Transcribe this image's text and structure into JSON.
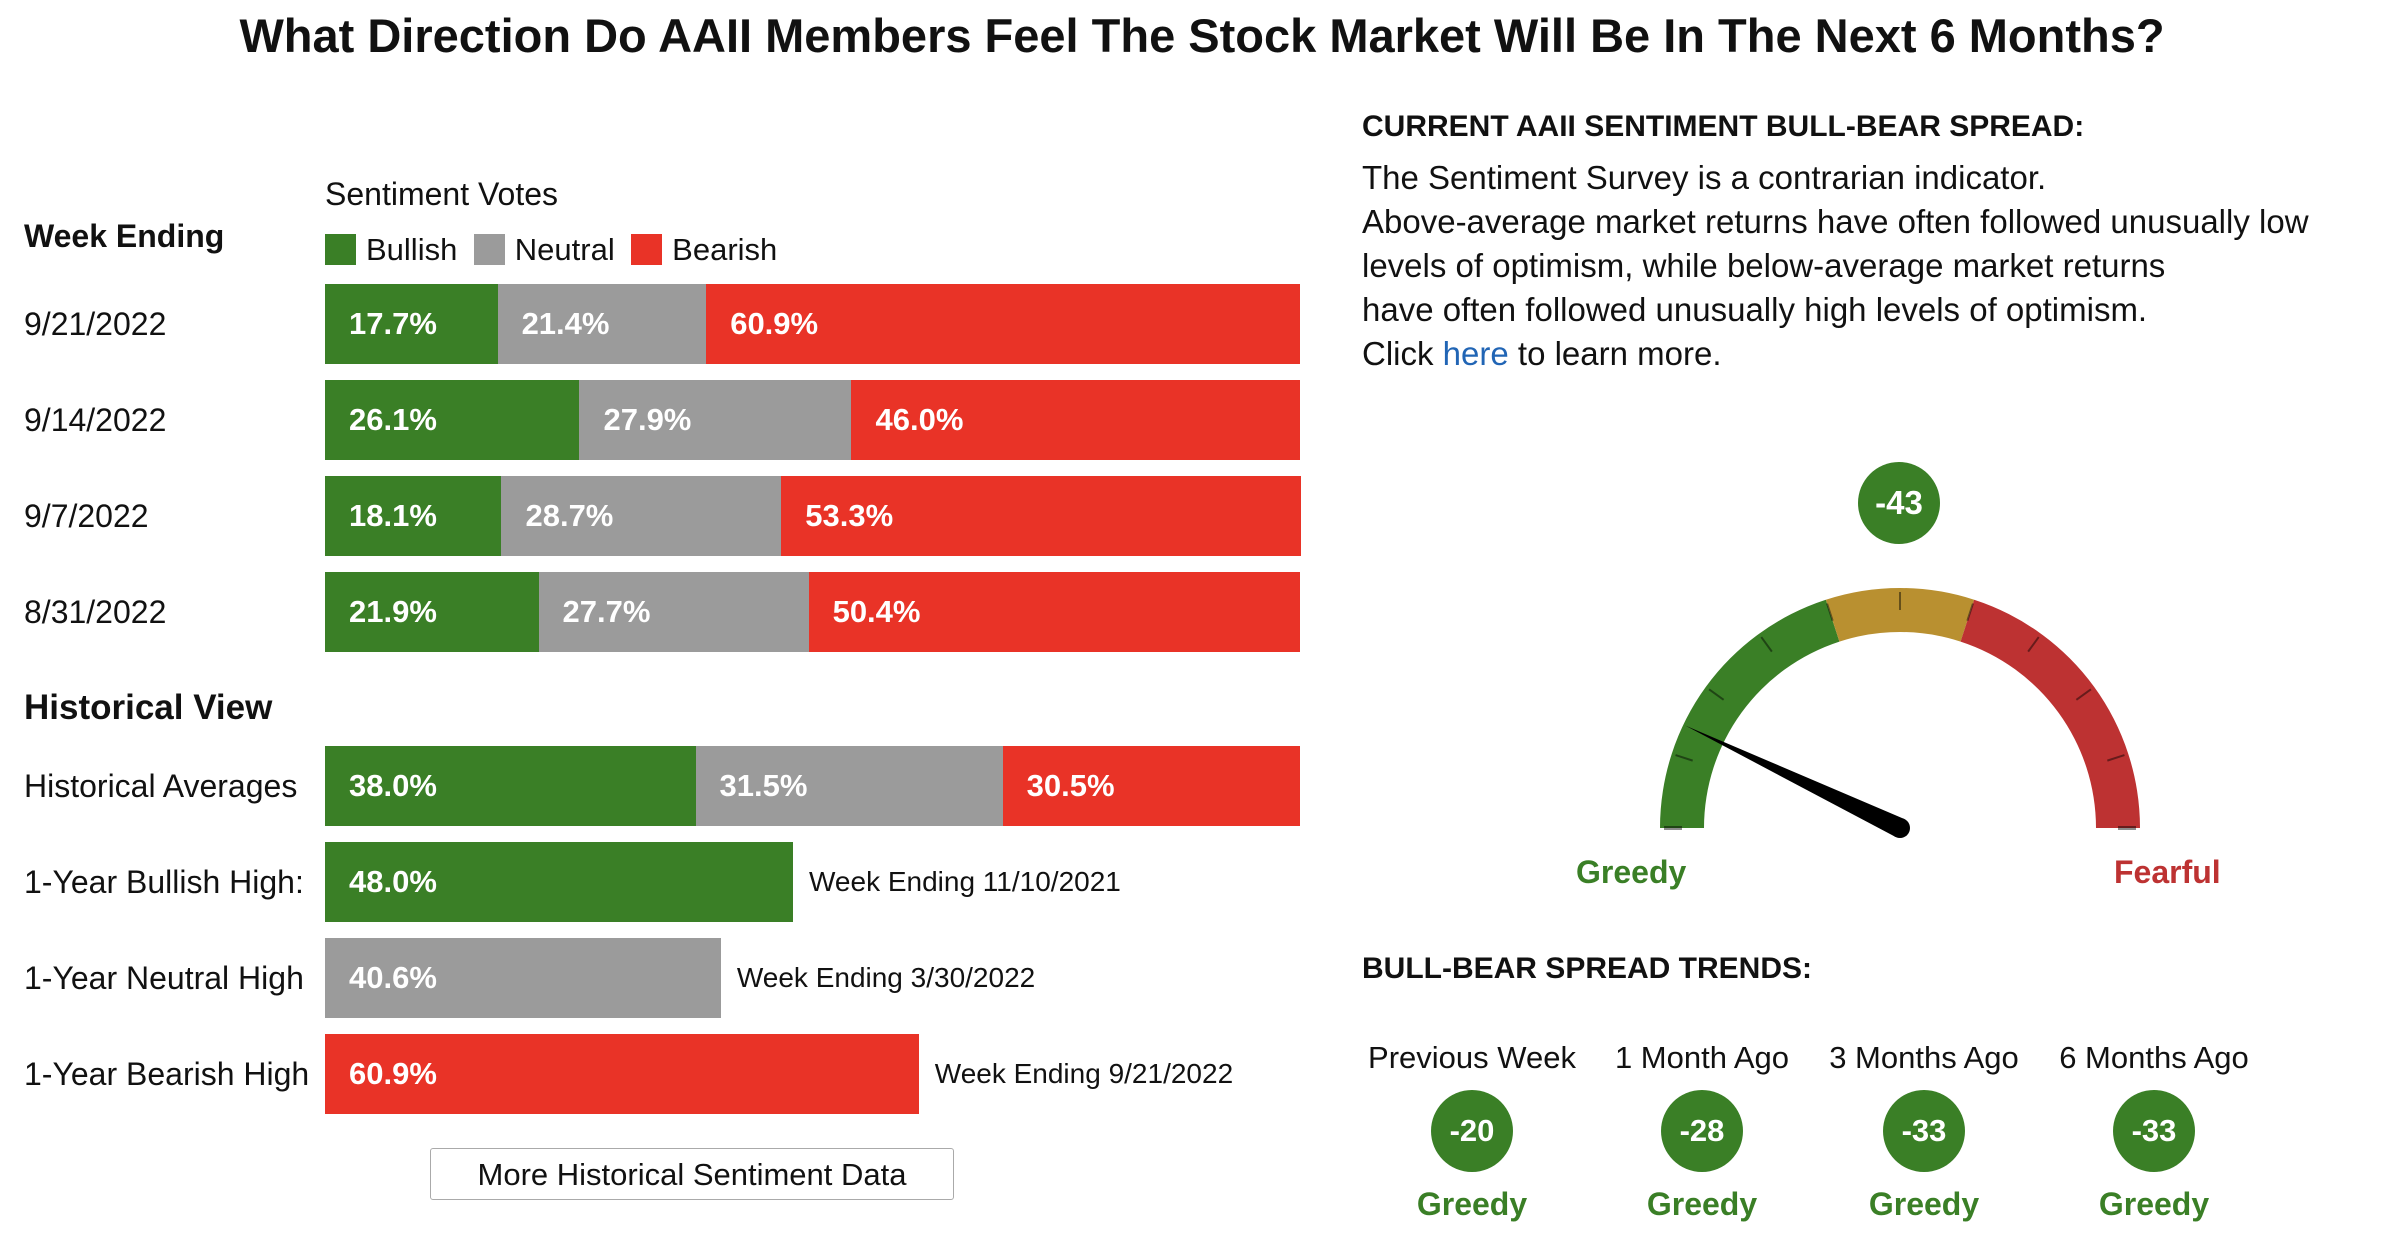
{
  "title": "What Direction Do AAII Members Feel The Stock Market Will Be In The Next 6 Months?",
  "left": {
    "week_ending_label": "Week Ending",
    "votes_label": "Sentiment Votes",
    "legend": [
      {
        "name": "Bullish",
        "color": "#3a7f26"
      },
      {
        "name": "Neutral",
        "color": "#9b9b9b"
      },
      {
        "name": "Bearish",
        "color": "#e93327"
      }
    ],
    "historical_view_label": "Historical View",
    "more_button": "More Historical Sentiment Data"
  },
  "chart_data": {
    "type": "bar",
    "stacked": true,
    "orientation": "horizontal",
    "title": "Sentiment Votes",
    "xlim": [
      0,
      100
    ],
    "series_names": [
      "Bullish",
      "Neutral",
      "Bearish"
    ],
    "weekly": [
      {
        "label": "9/21/2022",
        "bullish": 17.7,
        "neutral": 21.4,
        "bearish": 60.9,
        "text": {
          "bullish": "17.7%",
          "neutral": "21.4%",
          "bearish": "60.9%"
        }
      },
      {
        "label": "9/14/2022",
        "bullish": 26.1,
        "neutral": 27.9,
        "bearish": 46.0,
        "text": {
          "bullish": "26.1%",
          "neutral": "27.9%",
          "bearish": "46.0%"
        }
      },
      {
        "label": "9/7/2022",
        "bullish": 18.1,
        "neutral": 28.7,
        "bearish": 53.3,
        "text": {
          "bullish": "18.1%",
          "neutral": "28.7%",
          "bearish": "53.3%"
        }
      },
      {
        "label": "8/31/2022",
        "bullish": 21.9,
        "neutral": 27.7,
        "bearish": 50.4,
        "text": {
          "bullish": "21.9%",
          "neutral": "27.7%",
          "bearish": "50.4%"
        }
      }
    ],
    "historical": [
      {
        "label": "Historical Averages",
        "bullish": 38.0,
        "neutral": 31.5,
        "bearish": 30.5,
        "text": {
          "bullish": "38.0%",
          "neutral": "31.5%",
          "bearish": "30.5%"
        }
      },
      {
        "label": "1-Year Bullish High:",
        "value": 48.0,
        "kind": "bullish",
        "text": "48.0%",
        "note": "Week Ending 11/10/2021"
      },
      {
        "label": "1-Year Neutral High",
        "value": 40.6,
        "kind": "neutral",
        "text": "40.6%",
        "note": "Week Ending 3/30/2022"
      },
      {
        "label": "1-Year Bearish High",
        "value": 60.9,
        "kind": "bearish",
        "text": "60.9%",
        "note": "Week Ending 9/21/2022"
      }
    ],
    "gauge": {
      "value": -43,
      "value_text": "-43",
      "min": -60,
      "max": 60,
      "left_label": "Greedy",
      "right_label": "Fearful",
      "zone_colors": {
        "greedy": "#3a7f26",
        "neutral": "#b99030",
        "fearful": "#bd3232"
      }
    }
  },
  "right": {
    "spread_heading": "CURRENT AAII SENTIMENT BULL-BEAR SPREAD:",
    "desc_lines": [
      "The Sentiment Survey is a contrarian indicator.",
      "Above-average market returns have often followed unusually low",
      "levels of optimism, while below-average market returns",
      "have often followed unusually high levels of optimism."
    ],
    "click_prefix": "Click ",
    "click_link": "here",
    "click_suffix": " to learn more.",
    "trends_heading": "BULL-BEAR SPREAD TRENDS:",
    "trends": [
      {
        "label": "Previous Week",
        "value": "-20",
        "status": "Greedy"
      },
      {
        "label": "1 Month Ago",
        "value": "-28",
        "status": "Greedy"
      },
      {
        "label": "3 Months Ago",
        "value": "-33",
        "status": "Greedy"
      },
      {
        "label": "6 Months Ago",
        "value": "-33",
        "status": "Greedy"
      }
    ]
  }
}
